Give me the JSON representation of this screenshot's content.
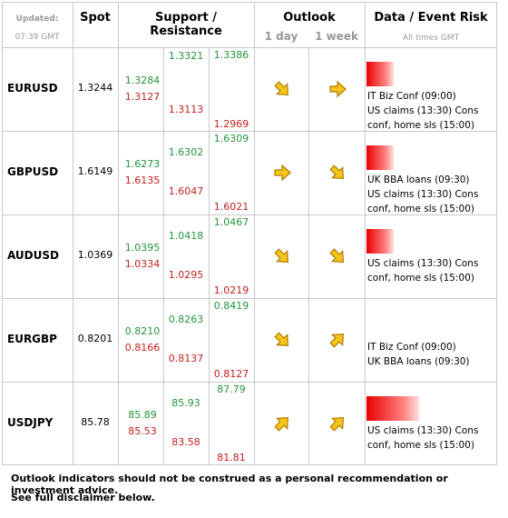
{
  "header": {
    "updated": "Updated:",
    "time": "07:39 GMT",
    "spot": "Spot",
    "sr": "Support / Resistance",
    "outlook": "Outlook",
    "day": "1 day",
    "week": "1 week",
    "data": "Data / Event Risk",
    "times": "All times GMT"
  },
  "rows": [
    {
      "pair": "EURUSD",
      "spot": "1.3244",
      "r1": "1.3284",
      "s1": "1.3127",
      "r2": "1.3321",
      "s2": "1.3113",
      "r3": "1.3386",
      "s3": "1.2969",
      "events": [
        "IT Biz Conf (09:00)",
        "US claims (13:30) Cons conf, home sls (15:00)"
      ]
    },
    {
      "pair": "GBPUSD",
      "spot": "1.6149",
      "r1": "1.6273",
      "s1": "1.6135",
      "r2": "1.6302",
      "s2": "1.6047",
      "r3": "1.6309",
      "s3": "1.6021",
      "events": [
        "UK BBA loans (09:30)",
        "US claims (13:30) Cons conf, home sls (15:00)"
      ]
    },
    {
      "pair": "AUDUSD",
      "spot": "1.0369",
      "r1": "1.0395",
      "s1": "1.0334",
      "r2": "1.0418",
      "s2": "1.0295",
      "r3": "1.0467",
      "s3": "1.0219",
      "events": [
        "US claims (13:30) Cons conf, home sls (15:00)"
      ]
    },
    {
      "pair": "EURGBP",
      "spot": "0.8201",
      "r1": "0.8210",
      "s1": "0.8166",
      "r2": "0.8263",
      "s2": "0.8137",
      "r3": "0.8419",
      "s3": "0.8127",
      "events": [
        "IT Biz Conf (09:00)",
        "UK BBA loans (09:30)"
      ]
    },
    {
      "pair": "USDJPY",
      "spot": "85.78",
      "r1": "85.89",
      "s1": "85.53",
      "r2": "85.93",
      "s2": "83.58",
      "r3": "87.79",
      "s3": "81.81",
      "events": [
        "US claims (13:30) Cons conf, home sls (15:00)"
      ]
    }
  ],
  "footer": [
    "Outlook indicators should not be construed as a personal recommendation or investment advice.",
    "See full disclaimer below."
  ]
}
